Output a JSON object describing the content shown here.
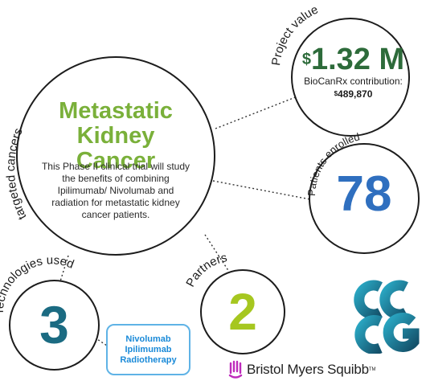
{
  "main": {
    "title_line1": "Metastatic",
    "title_line2": "Kidney Cancer",
    "description": "This Phase II clinical trial will study the benefits of combining Ipilimumab/ Nivolumab and radiation for metastatic kidney cancer patients.",
    "label": "targeted cancers"
  },
  "project_value": {
    "label": "Project value",
    "currency_symbol": "$",
    "amount": "1.32 M",
    "contribution_label": "BioCanRx contribution:",
    "contribution_currency": "$",
    "contribution_amount": "489,870"
  },
  "patients": {
    "label": "Patients enrolled",
    "value": "78"
  },
  "partners": {
    "label": "Partners",
    "value": "2"
  },
  "technologies": {
    "label": "Technologies used",
    "value": "3",
    "items": [
      "Nivolumab",
      "Ipilimumab",
      "Radiotherapy"
    ]
  },
  "logos": {
    "bms_name": "Bristol Myers Squibb",
    "bms_tm": "TM"
  },
  "colors": {
    "title_green": "#7ab03a",
    "value_green": "#2d6b3a",
    "patients_blue": "#2f6fbf",
    "partners_lime": "#a6c720",
    "tech_teal": "#1b6b82",
    "tech_box_blue": "#5fb3e6",
    "bms_purple": "#be2bbb"
  }
}
